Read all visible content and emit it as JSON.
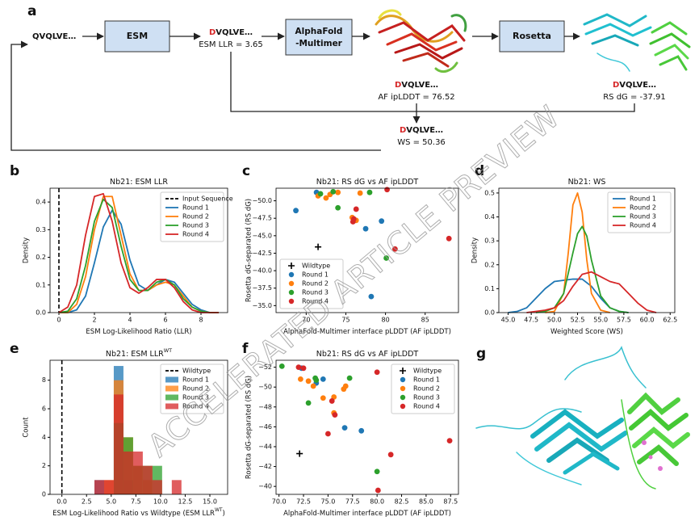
{
  "pipeline": {
    "panel_label": "a",
    "input": "QVQLVE…",
    "esm": "ESM",
    "esm_seq": {
      "mutant": "D",
      "tail": "VQLVE…"
    },
    "esm_score": "ESM LLR = 3.65",
    "alphafold": [
      "AlphaFold",
      "-Multimer"
    ],
    "rosetta": "Rosetta",
    "af_seq": {
      "mutant": "D",
      "tail": "VQLVE…"
    },
    "af_score": "AF ipLDDT = 76.52",
    "rs_seq": {
      "mutant": "D",
      "tail": "VQLVE…"
    },
    "rs_score": "RS dG = -37.91",
    "ws_seq": {
      "mutant": "D",
      "tail": "VQLVE…"
    },
    "ws_score": "WS = 50.36"
  },
  "structure_panel": {
    "panel_label": "g"
  },
  "watermark": "ACCELERATED ARTICLE PREVIEW",
  "chart_data": [
    {
      "type": "line",
      "panel_label": "b",
      "title": "Nb21: ESM LLR",
      "xlabel": "ESM Log-Likelihood Ratio (LLR)",
      "ylabel": "Density",
      "xlim": [
        -0.5,
        9.5
      ],
      "xticks": [
        0,
        2,
        4,
        6,
        8
      ],
      "ylim": [
        0,
        0.45
      ],
      "yticks": [
        {
          "value": 0,
          "label": "0.0"
        },
        0.1,
        0.2,
        0.3,
        0.4
      ],
      "legend": "upper right",
      "reference": {
        "name": "Input Sequence",
        "x": 0,
        "color": "#000000",
        "style": "dashed"
      },
      "series": [
        {
          "name": "Round 1",
          "color": "#1f77b4",
          "x": [
            0,
            0.5,
            1,
            1.5,
            2,
            2.5,
            3,
            3.5,
            4,
            4.5,
            5,
            5.5,
            6,
            6.5,
            7,
            7.5,
            8,
            8.5,
            9
          ],
          "values": [
            0,
            0,
            0.01,
            0.06,
            0.18,
            0.31,
            0.37,
            0.32,
            0.19,
            0.1,
            0.08,
            0.1,
            0.12,
            0.11,
            0.07,
            0.03,
            0.01,
            0,
            0
          ]
        },
        {
          "name": "Round 2",
          "color": "#ff7f0e",
          "x": [
            0,
            0.5,
            1,
            1.5,
            2,
            2.5,
            3,
            3.5,
            4,
            4.5,
            5,
            5.5,
            6,
            6.5,
            7,
            7.5,
            8,
            8.5,
            9
          ],
          "values": [
            0,
            0,
            0.03,
            0.13,
            0.3,
            0.42,
            0.42,
            0.28,
            0.14,
            0.08,
            0.08,
            0.1,
            0.11,
            0.1,
            0.06,
            0.02,
            0.005,
            0,
            0
          ]
        },
        {
          "name": "Round 3",
          "color": "#2ca02c",
          "x": [
            0,
            0.5,
            1,
            1.5,
            2,
            2.5,
            3,
            3.5,
            4,
            4.5,
            5,
            5.5,
            6,
            6.5,
            7,
            7.5,
            8,
            8.5,
            9
          ],
          "values": [
            0,
            0.005,
            0.05,
            0.17,
            0.33,
            0.41,
            0.38,
            0.24,
            0.12,
            0.08,
            0.08,
            0.11,
            0.12,
            0.1,
            0.05,
            0.02,
            0.005,
            0,
            0
          ]
        },
        {
          "name": "Round 4",
          "color": "#d62728",
          "x": [
            0,
            0.5,
            1,
            1.5,
            2,
            2.5,
            3,
            3.5,
            4,
            4.5,
            5,
            5.5,
            6,
            6.5,
            7,
            7.5,
            8,
            8.5,
            9
          ],
          "values": [
            0,
            0.02,
            0.1,
            0.28,
            0.42,
            0.43,
            0.33,
            0.18,
            0.09,
            0.07,
            0.09,
            0.12,
            0.12,
            0.09,
            0.04,
            0.01,
            0,
            0,
            0
          ]
        }
      ]
    },
    {
      "type": "scatter",
      "panel_label": "c",
      "title": "Nb21: RS dG vs AF ipLDDT",
      "xlabel": "AlphaFold-Multimer interface pLDDT (AF ipLDDT)",
      "ylabel": "Rosetta dG-separated (RS dG)",
      "xlim": [
        66.2,
        89.2
      ],
      "xticks": [
        70,
        75,
        80,
        85
      ],
      "ylim": [
        -34,
        -51.8
      ],
      "yticks": [
        {
          "value": -50,
          "label": "−50.0"
        },
        {
          "value": -47.5,
          "label": "−47.5"
        },
        {
          "value": -45,
          "label": "−45.0"
        },
        {
          "value": -42.5,
          "label": "−42.5"
        },
        {
          "value": -40,
          "label": "−40.0"
        },
        {
          "value": -37.5,
          "label": "−37.5"
        },
        {
          "value": -35,
          "label": "−35.0"
        }
      ],
      "legend": "lower left",
      "series": [
        {
          "name": "Wildtype",
          "color": "#000000",
          "marker": "plus",
          "x": [
            71.5
          ],
          "values": [
            -43.4
          ]
        },
        {
          "name": "Round 1",
          "color": "#1f77b4",
          "x": [
            68.7,
            71.3,
            77.5,
            79.5,
            78.2
          ],
          "values": [
            -48.6,
            -51.2,
            -46,
            -47.1,
            -36.3
          ]
        },
        {
          "name": "Round 2",
          "color": "#ff7f0e",
          "x": [
            71.5,
            72.5,
            73,
            74,
            76.8,
            75.8,
            76.3
          ],
          "values": [
            -50.7,
            -50.4,
            -50.9,
            -51.2,
            -51.1,
            -47.6,
            -47.2
          ]
        },
        {
          "name": "Round 3",
          "color": "#2ca02c",
          "x": [
            71.8,
            73.4,
            74,
            78,
            80.1
          ],
          "values": [
            -51,
            -51.3,
            -49,
            -51.2,
            -41.8
          ]
        },
        {
          "name": "Round 4",
          "color": "#d62728",
          "x": [
            76.3,
            76,
            80.2,
            81.2,
            75.9,
            88
          ],
          "values": [
            -48.8,
            -47.4,
            -51.6,
            -43.1,
            -47,
            -44.6
          ]
        }
      ]
    },
    {
      "type": "line",
      "panel_label": "d",
      "title": "Nb21: WS",
      "xlabel": "Weighted Score (WS)",
      "ylabel": "Density",
      "xlim": [
        44,
        63
      ],
      "xticks": [
        {
          "value": 45,
          "label": "45.0"
        },
        47.5,
        {
          "value": 50,
          "label": "50.0"
        },
        52.5,
        {
          "value": 55,
          "label": "55.0"
        },
        57.5,
        {
          "value": 60,
          "label": "60.0"
        },
        62.5
      ],
      "ylim": [
        0,
        0.52
      ],
      "yticks": [
        {
          "value": 0,
          "label": "0.0"
        },
        0.1,
        0.2,
        0.3,
        0.4,
        0.5
      ],
      "legend": "upper right",
      "series": [
        {
          "name": "Round 1",
          "color": "#1f77b4",
          "x": [
            45,
            46,
            47,
            48,
            49,
            50,
            51,
            52,
            53,
            54,
            55,
            56,
            57,
            58
          ],
          "values": [
            0,
            0.005,
            0.02,
            0.06,
            0.1,
            0.13,
            0.135,
            0.14,
            0.14,
            0.11,
            0.06,
            0.02,
            0.005,
            0
          ]
        },
        {
          "name": "Round 2",
          "color": "#ff7f0e",
          "x": [
            49,
            50,
            51,
            51.5,
            52,
            52.5,
            53,
            53.5,
            54,
            55,
            56
          ],
          "values": [
            0,
            0.005,
            0.08,
            0.25,
            0.45,
            0.5,
            0.42,
            0.22,
            0.08,
            0.01,
            0
          ]
        },
        {
          "name": "Round 3",
          "color": "#2ca02c",
          "x": [
            48,
            49,
            50,
            51,
            52,
            52.5,
            53,
            53.5,
            54,
            55,
            56,
            57,
            58
          ],
          "values": [
            0,
            0.005,
            0.02,
            0.08,
            0.25,
            0.33,
            0.36,
            0.32,
            0.22,
            0.07,
            0.02,
            0.005,
            0
          ]
        },
        {
          "name": "Round 4",
          "color": "#d62728",
          "x": [
            47,
            48,
            49,
            50,
            51,
            52,
            53,
            54,
            55,
            56,
            57,
            58,
            59,
            60,
            61
          ],
          "values": [
            0,
            0.005,
            0.01,
            0.02,
            0.05,
            0.11,
            0.16,
            0.17,
            0.15,
            0.13,
            0.12,
            0.08,
            0.04,
            0.01,
            0
          ]
        }
      ]
    },
    {
      "type": "histogram",
      "panel_label": "e",
      "title": "Nb21: ESM LLR",
      "title_superscript": "WT",
      "xlabel": "ESM Log-Likelihood Ratio vs Wildtype (ESM LLR",
      "xlabel_superscript": "WT",
      "xlabel_suffix": ")",
      "ylabel": "Count",
      "xlim": [
        -1.2,
        16.8
      ],
      "xticks": [
        {
          "value": 0,
          "label": "0.0"
        },
        2.5,
        {
          "value": 5,
          "label": "5.0"
        },
        7.5,
        {
          "value": 10,
          "label": "10.0"
        },
        12.5,
        {
          "value": 15,
          "label": "15.0"
        }
      ],
      "ylim": [
        0,
        9.4
      ],
      "yticks": [
        0,
        2,
        4,
        6,
        8
      ],
      "legend": "upper right",
      "reference": {
        "name": "Wildtype",
        "x": 0,
        "color": "#000000",
        "style": "dashed"
      },
      "bins": [
        3.3,
        4.28,
        5.26,
        6.24,
        7.22,
        8.2,
        9.18,
        10.16,
        11.14,
        12.12
      ],
      "series": [
        {
          "name": "Round 1",
          "color": "#1f77b4",
          "values": [
            1,
            0,
            9,
            1,
            0,
            0,
            0,
            0,
            0
          ]
        },
        {
          "name": "Round 2",
          "color": "#ff7f0e",
          "values": [
            0,
            1,
            8,
            4,
            2,
            1,
            0,
            0,
            0
          ]
        },
        {
          "name": "Round 3",
          "color": "#2ca02c",
          "values": [
            0,
            0,
            5,
            4,
            2,
            2,
            2,
            0,
            0
          ]
        },
        {
          "name": "Round 4",
          "color": "#d62728",
          "values": [
            1,
            1,
            7,
            3,
            3,
            2,
            1,
            0,
            1
          ]
        }
      ]
    },
    {
      "type": "scatter",
      "panel_label": "f",
      "title": "Nb21: RS dG vs AF ipLDDT",
      "xlabel": "AlphaFold-Multimer interface pLDDT (AF ipLDDT)",
      "ylabel": "Rosetta dG-separated (RS dG)",
      "xlim": [
        69.7,
        88.3
      ],
      "xticks": [
        {
          "value": 70,
          "label": "70.0"
        },
        72.5,
        {
          "value": 75,
          "label": "75.0"
        },
        77.5,
        {
          "value": 80,
          "label": "80.0"
        },
        82.5,
        {
          "value": 85,
          "label": "85.0"
        },
        87.5
      ],
      "ylim": [
        -39.2,
        -52.7
      ],
      "yticks": [
        {
          "value": -52,
          "label": "−52"
        },
        {
          "value": -50,
          "label": "−50"
        },
        {
          "value": -48,
          "label": "−48"
        },
        {
          "value": -46,
          "label": "−46"
        },
        {
          "value": -44,
          "label": "−44"
        },
        {
          "value": -42,
          "label": "−42"
        },
        {
          "value": -40,
          "label": "−40"
        }
      ],
      "legend": "upper right",
      "series": [
        {
          "name": "Wildtype",
          "color": "#000000",
          "marker": "plus",
          "x": [
            72.1
          ],
          "values": [
            -43.3
          ]
        },
        {
          "name": "Round 1",
          "color": "#1f77b4",
          "x": [
            72.3,
            73.8,
            76.7,
            78.4,
            74.5
          ],
          "values": [
            -51.9,
            -50.4,
            -45.9,
            -45.6,
            -50.8
          ]
        },
        {
          "name": "Round 2",
          "color": "#ff7f0e",
          "x": [
            72.2,
            73,
            73.5,
            74.5,
            75.6,
            75.6,
            76.8,
            76.6
          ],
          "values": [
            -50.8,
            -50.6,
            -50.1,
            -48.9,
            -49,
            -47.4,
            -50.1,
            -49.8
          ]
        },
        {
          "name": "Round 3",
          "color": "#2ca02c",
          "x": [
            70.3,
            73.7,
            73.8,
            77.2,
            80,
            73
          ],
          "values": [
            -52.1,
            -50.9,
            -50.7,
            -50.9,
            -41.5,
            -48.4
          ]
        },
        {
          "name": "Round 4",
          "color": "#d62728",
          "x": [
            72,
            72.5,
            75.4,
            75.7,
            75,
            80,
            81.4,
            87.4,
            80.1
          ],
          "values": [
            -52,
            -51.9,
            -48.6,
            -47.2,
            -45.3,
            -51.5,
            -43.2,
            -44.6,
            -39.6
          ]
        }
      ]
    }
  ]
}
